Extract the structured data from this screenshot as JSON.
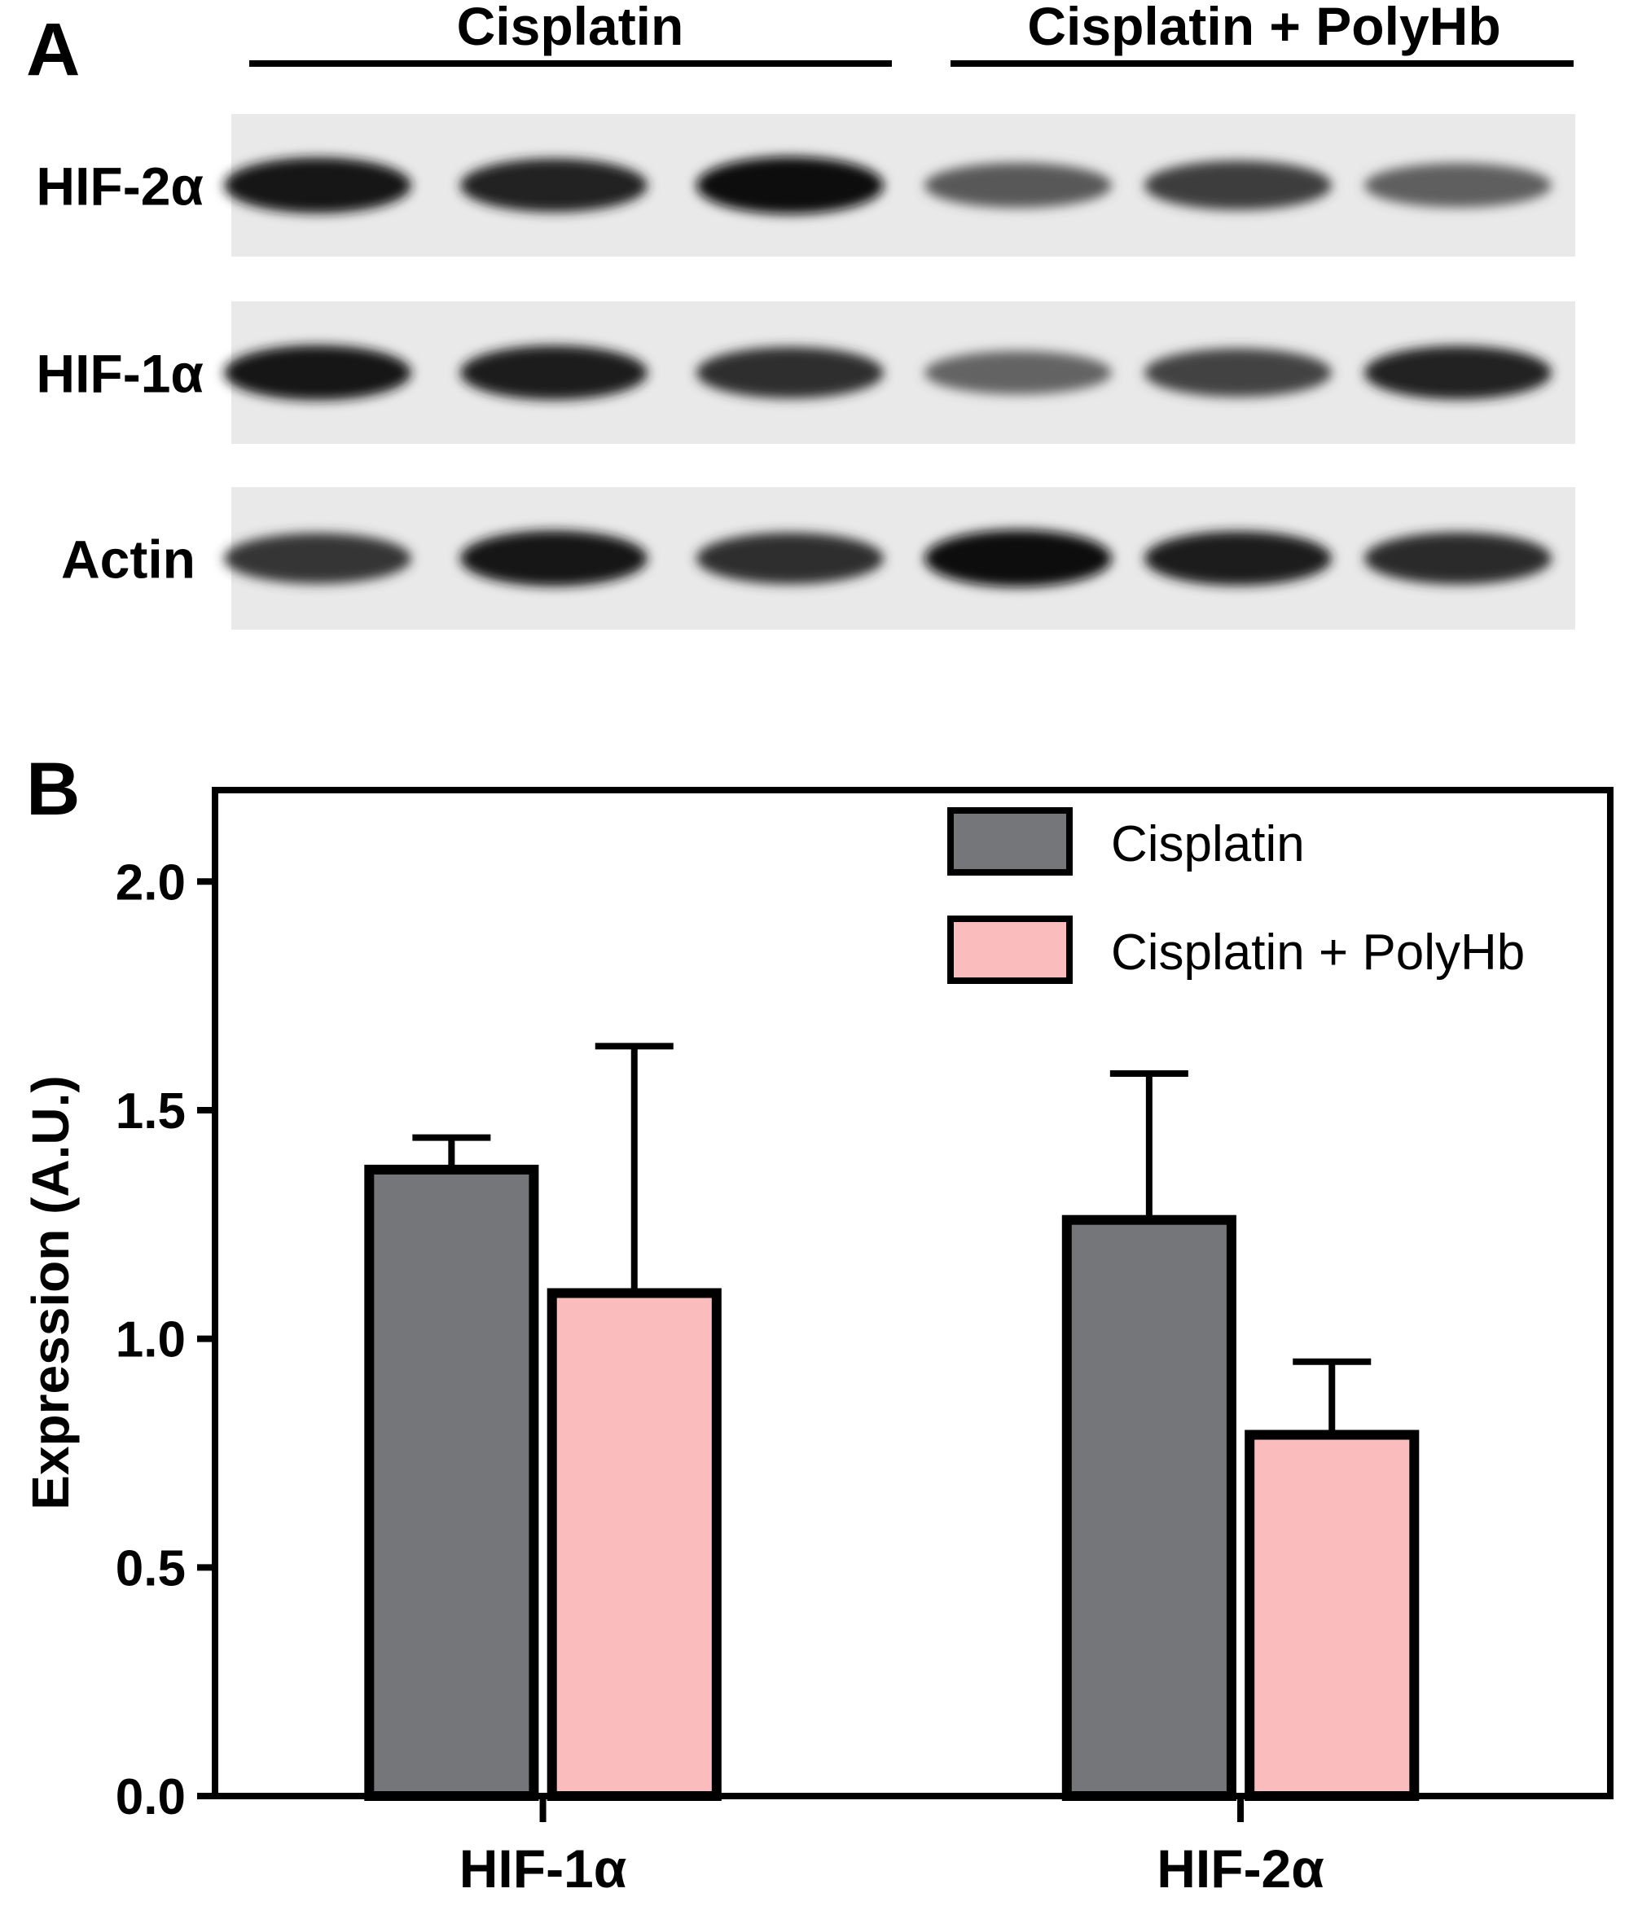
{
  "panel_a": {
    "label": "A",
    "groups": [
      "Cisplatin",
      "Cisplatin + PolyHb"
    ],
    "rows": [
      {
        "label": "HIF-2α",
        "intensities": [
          0.92,
          0.86,
          0.97,
          0.62,
          0.74,
          0.6
        ]
      },
      {
        "label": "HIF-1α",
        "intensities": [
          0.9,
          0.88,
          0.8,
          0.58,
          0.72,
          0.86
        ]
      },
      {
        "label": "Actin",
        "intensities": [
          0.78,
          0.92,
          0.8,
          0.96,
          0.88,
          0.82
        ]
      }
    ]
  },
  "panel_b": {
    "label": "B"
  },
  "chart_data": {
    "type": "bar",
    "categories": [
      "HIF-1α",
      "HIF-2α"
    ],
    "series": [
      {
        "name": "Cisplatin",
        "values": [
          1.37,
          1.26
        ],
        "errors": [
          0.07,
          0.32
        ],
        "color": "#75767a"
      },
      {
        "name": "Cisplatin + PolyHb",
        "values": [
          1.1,
          0.79
        ],
        "errors": [
          0.54,
          0.16
        ],
        "color": "#fbbcbe"
      }
    ],
    "title": "",
    "xlabel": "",
    "ylabel": "Expression (A.U.)",
    "ylim": [
      0,
      2.2
    ],
    "yticks": [
      0.0,
      0.5,
      1.0,
      1.5,
      2.0
    ],
    "ytick_labels": [
      "0.0",
      "0.5",
      "1.0",
      "1.5",
      "2.0"
    ],
    "legend_position": "top-right",
    "grid": false
  }
}
